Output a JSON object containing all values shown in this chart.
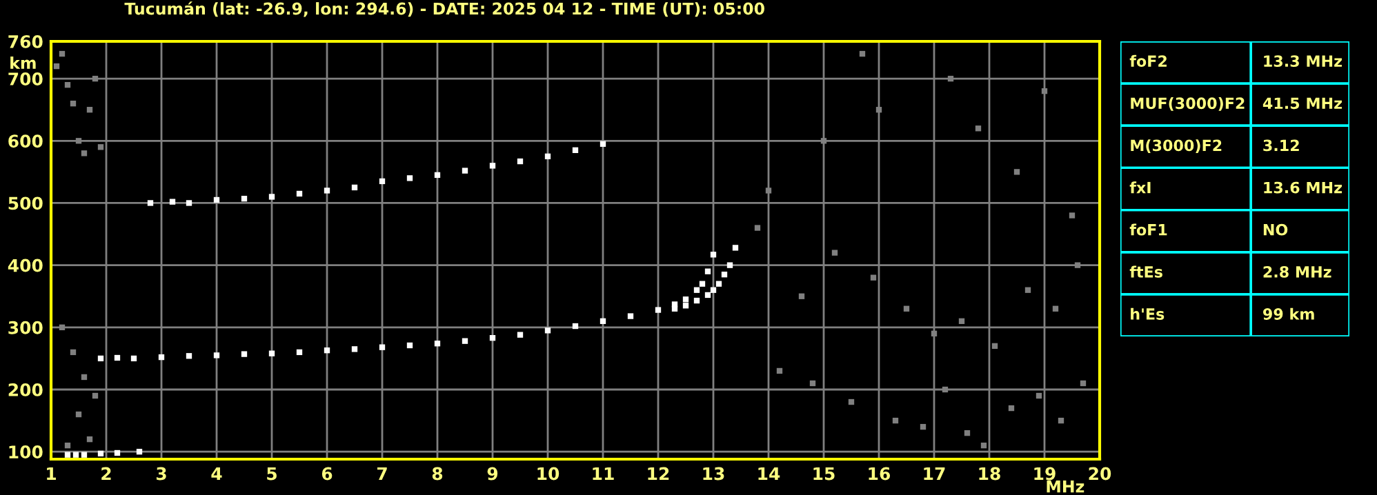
{
  "chart_data": [
    {
      "type": "scatter",
      "title": "Tucumán (lat: -26.9, lon: 294.6) - DATE: 2025 04 12 - TIME (UT): 05:00",
      "xlabel": "MHz",
      "ylabel": "km",
      "xlim": [
        1,
        20
      ],
      "ylim": [
        88,
        760
      ],
      "xticks": [
        1,
        2,
        3,
        4,
        5,
        6,
        7,
        8,
        9,
        10,
        11,
        12,
        13,
        14,
        15,
        16,
        17,
        18,
        19,
        20
      ],
      "yticks": [
        100,
        200,
        300,
        400,
        500,
        600,
        700,
        760
      ],
      "grid": true,
      "legend": false,
      "marker": "square",
      "series": [
        {
          "color": "#ffffff",
          "x": [
            1.9,
            2.2,
            2.5,
            3,
            3.5,
            4,
            4.5,
            5,
            5.5,
            6,
            6.5,
            7,
            7.5,
            8,
            8.5,
            9,
            9.5,
            10,
            10.5,
            11,
            11.5,
            12,
            12.3,
            12.5,
            12.7,
            12.8,
            12.9,
            13.0
          ],
          "values": [
            250,
            251,
            250,
            252,
            254,
            255,
            257,
            258,
            260,
            263,
            265,
            268,
            271,
            274,
            278,
            283,
            288,
            295,
            302,
            310,
            318,
            328,
            337,
            345,
            360,
            370,
            390,
            417
          ]
        },
        {
          "color": "#ffffff",
          "x": [
            12.3,
            12.5,
            12.7,
            12.9,
            13.0,
            13.1,
            13.2,
            13.3,
            13.4
          ],
          "values": [
            330,
            335,
            343,
            352,
            360,
            370,
            385,
            400,
            428
          ]
        },
        {
          "color": "#ffffff",
          "x": [
            2.8,
            3.2,
            3.5,
            4,
            4.5,
            5,
            5.5,
            6,
            6.5,
            7,
            7.5,
            8,
            8.5,
            9,
            9.5,
            10,
            10.5,
            11
          ],
          "values": [
            500,
            502,
            500,
            505,
            507,
            510,
            515,
            520,
            525,
            535,
            540,
            545,
            552,
            560,
            567,
            575,
            585,
            595
          ]
        },
        {
          "color": "#ffffff",
          "x": [
            1.3,
            1.45,
            1.6,
            1.9,
            2.2,
            2.6
          ],
          "values": [
            95,
            95,
            95,
            97,
            98,
            100
          ]
        },
        {
          "color": "#808080",
          "x": [
            1.1,
            1.2,
            1.3,
            1.4,
            1.5,
            1.6,
            1.7,
            1.8,
            1.9,
            1.2,
            1.4,
            1.6,
            1.8,
            1.5,
            1.3,
            1.7,
            14.2,
            14.8,
            15.5,
            16.3,
            16.8,
            17.2,
            17.6,
            17.9,
            18.4,
            18.9,
            19.3,
            19.7,
            14.6,
            15.2,
            15.9,
            16.5,
            17.0,
            17.5,
            18.1,
            18.7,
            19.2,
            19.6,
            15.0,
            16.0,
            17.3,
            18.5,
            19.5,
            14.0,
            13.8,
            15.7,
            17.8,
            19.0
          ],
          "values": [
            720,
            740,
            690,
            660,
            600,
            580,
            650,
            700,
            590,
            300,
            260,
            220,
            190,
            160,
            110,
            120,
            230,
            210,
            180,
            150,
            140,
            200,
            130,
            110,
            170,
            190,
            150,
            210,
            350,
            420,
            380,
            330,
            290,
            310,
            270,
            360,
            330,
            400,
            600,
            650,
            700,
            550,
            480,
            520,
            460,
            740,
            620,
            680
          ]
        }
      ]
    },
    {
      "type": "other",
      "annotations": [
        "foF2",
        "13.3 MHz",
        "MUF(3000)F2",
        "41.5 MHz",
        "M(3000)F2",
        "3.12",
        "fxI",
        "13.6 MHz",
        "foF1",
        "NO",
        "ftEs",
        "2.8 MHz",
        "h'Es",
        "99 km"
      ]
    }
  ]
}
